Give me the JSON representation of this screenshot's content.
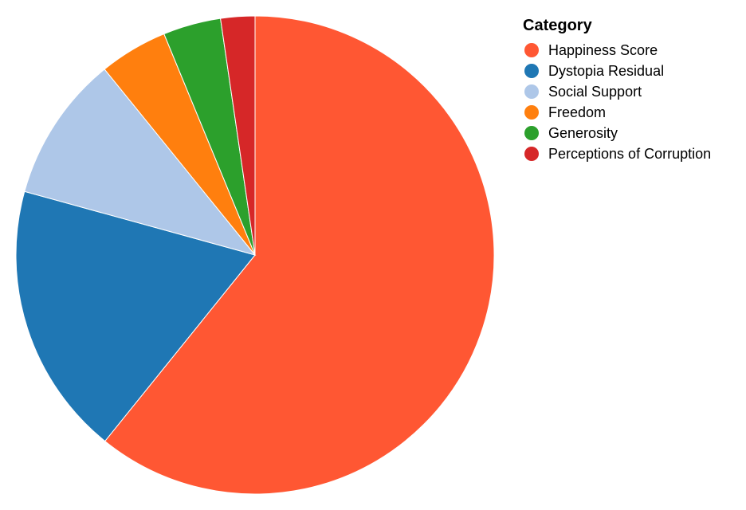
{
  "chart_data": {
    "type": "pie",
    "legend_title": "Category",
    "legend_position": "right",
    "categories": [
      "Happiness Score",
      "Dystopia Residual",
      "Social Support",
      "Freedom",
      "Generosity",
      "Perceptions of Corruption"
    ],
    "values": [
      7.63,
      2.32,
      1.24,
      0.58,
      0.49,
      0.29
    ],
    "colors": [
      "#ff5733",
      "#1f77b4",
      "#aec7e8",
      "#ff7f0e",
      "#2ca02c",
      "#d62728"
    ]
  }
}
